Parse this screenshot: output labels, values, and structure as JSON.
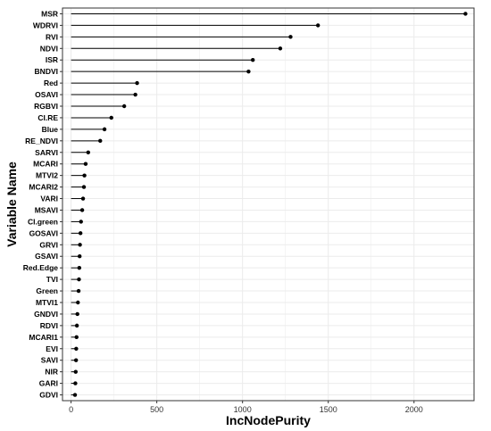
{
  "chart_data": {
    "type": "lollipop",
    "xlabel": "IncNodePurity",
    "ylabel": "Variable Name",
    "xlim": [
      -50,
      2350
    ],
    "xticks": [
      0,
      500,
      1000,
      1500,
      2000
    ],
    "grid": true,
    "categories": [
      "MSR",
      "WDRVI",
      "RVI",
      "NDVI",
      "ISR",
      "BNDVI",
      "Red",
      "OSAVI",
      "RGBVI",
      "CI.RE",
      "Blue",
      "RE_NDVI",
      "SARVI",
      "MCARI",
      "MTVI2",
      "MCARI2",
      "VARI",
      "MSAVI",
      "CI.green",
      "GOSAVI",
      "GRVI",
      "GSAVI",
      "Red.Edge",
      "TVI",
      "Green",
      "MTVI1",
      "GNDVI",
      "RDVI",
      "MCARI1",
      "EVI",
      "SAVI",
      "NIR",
      "GARI",
      "GDVI"
    ],
    "values": [
      2300,
      1440,
      1280,
      1220,
      1060,
      1035,
      385,
      375,
      310,
      235,
      195,
      170,
      100,
      85,
      78,
      75,
      70,
      65,
      58,
      55,
      52,
      50,
      48,
      46,
      44,
      40,
      37,
      34,
      32,
      30,
      29,
      27,
      25,
      23
    ],
    "colors": {
      "line": "#000000",
      "point": "#000000",
      "grid": "#ebebeb",
      "panel_border": "#333333"
    }
  }
}
